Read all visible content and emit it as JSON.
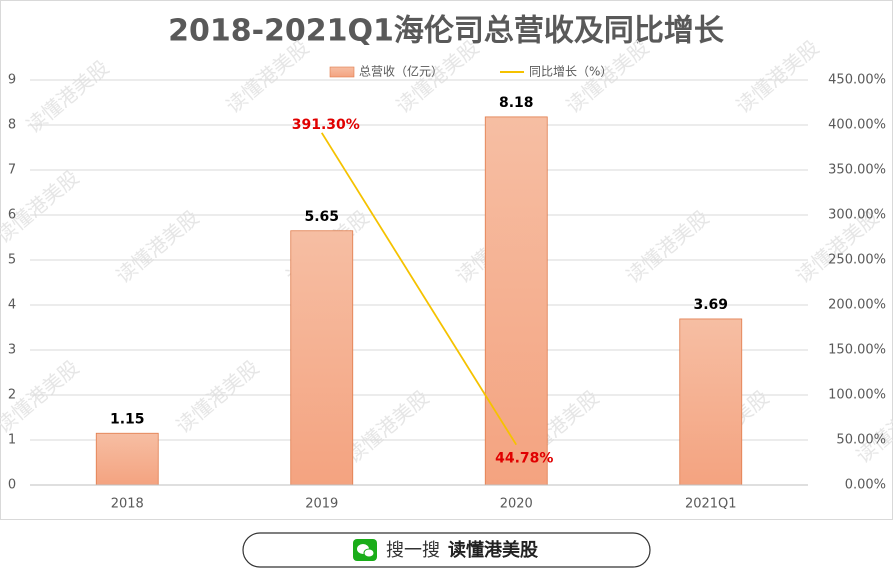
{
  "chart_data": {
    "type": "bar_line",
    "title": "2018-2021Q1海伦司总营收及同比增长",
    "categories": [
      "2018",
      "2019",
      "2020",
      "2021Q1"
    ],
    "series": [
      {
        "name": "总营收（亿元）",
        "type": "bar",
        "color": "#f4a582",
        "values": [
          1.15,
          5.65,
          8.18,
          3.69
        ]
      },
      {
        "name": "同比增长（%）",
        "type": "line",
        "axis": "y2",
        "color": "#f5c200",
        "values": [
          null,
          391.3,
          44.78,
          null
        ],
        "value_labels": [
          null,
          "391.30%",
          "44.78%",
          null
        ],
        "label_color": "#e00000"
      }
    ],
    "ylim": [
      0,
      9
    ],
    "yticks": [
      0,
      1,
      2,
      3,
      4,
      5,
      6,
      7,
      8,
      9
    ],
    "y2lim": [
      0,
      450
    ],
    "y2ticks": [
      {
        "value": 0,
        "label": "0.00%"
      },
      {
        "value": 50,
        "label": "50.00%"
      },
      {
        "value": 100,
        "label": "100.00%"
      },
      {
        "value": 150,
        "label": "150.00%"
      },
      {
        "value": 200,
        "label": "200.00%"
      },
      {
        "value": 250,
        "label": "250.00%"
      },
      {
        "value": 300,
        "label": "300.00%"
      },
      {
        "value": 350,
        "label": "350.00%"
      },
      {
        "value": 400,
        "label": "400.00%"
      },
      {
        "value": 450,
        "label": "450.00%"
      }
    ],
    "grid": true,
    "legend": "top"
  },
  "watermark": "读懂港美股",
  "footer": {
    "prefix": "搜一搜",
    "name": "读懂港美股"
  }
}
